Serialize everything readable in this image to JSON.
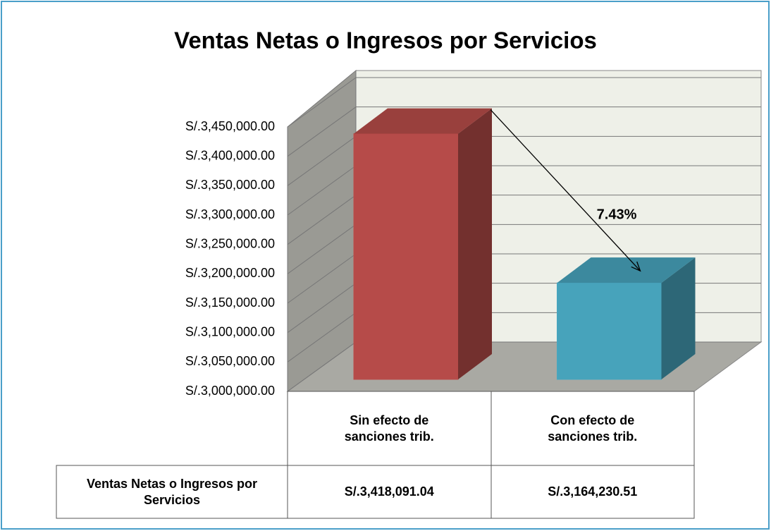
{
  "chart_data": {
    "type": "bar3d",
    "title": "Ventas Netas o Ingresos por Servicios",
    "categories": [
      "Sin efecto de sanciones trib.",
      "Con efecto de sanciones trib."
    ],
    "colors": [
      "#c0504d",
      "#4bacc6"
    ],
    "series": [
      {
        "name": "Ventas Netas o Ingresos por Servicios",
        "values": [
          3418091.04,
          3164230.51
        ],
        "value_labels": [
          "S/.3,418,091.04",
          "S/.3,164,230.51"
        ]
      }
    ],
    "ylim": [
      3000000,
      3450000
    ],
    "yticks": [
      {
        "value": 3000000,
        "label": "S/.3,000,000.00"
      },
      {
        "value": 3050000,
        "label": "S/.3,050,000.00"
      },
      {
        "value": 3100000,
        "label": "S/.3,100,000.00"
      },
      {
        "value": 3150000,
        "label": "S/.3,150,000.00"
      },
      {
        "value": 3200000,
        "label": "S/.3,200,000.00"
      },
      {
        "value": 3250000,
        "label": "S/.3,250,000.00"
      },
      {
        "value": 3300000,
        "label": "S/.3,300,000.00"
      },
      {
        "value": 3350000,
        "label": "S/.3,350,000.00"
      },
      {
        "value": 3400000,
        "label": "S/.3,400,000.00"
      },
      {
        "value": 3450000,
        "label": "S/.3,450,000.00"
      }
    ],
    "grid": true,
    "annotation": "7.43%"
  }
}
